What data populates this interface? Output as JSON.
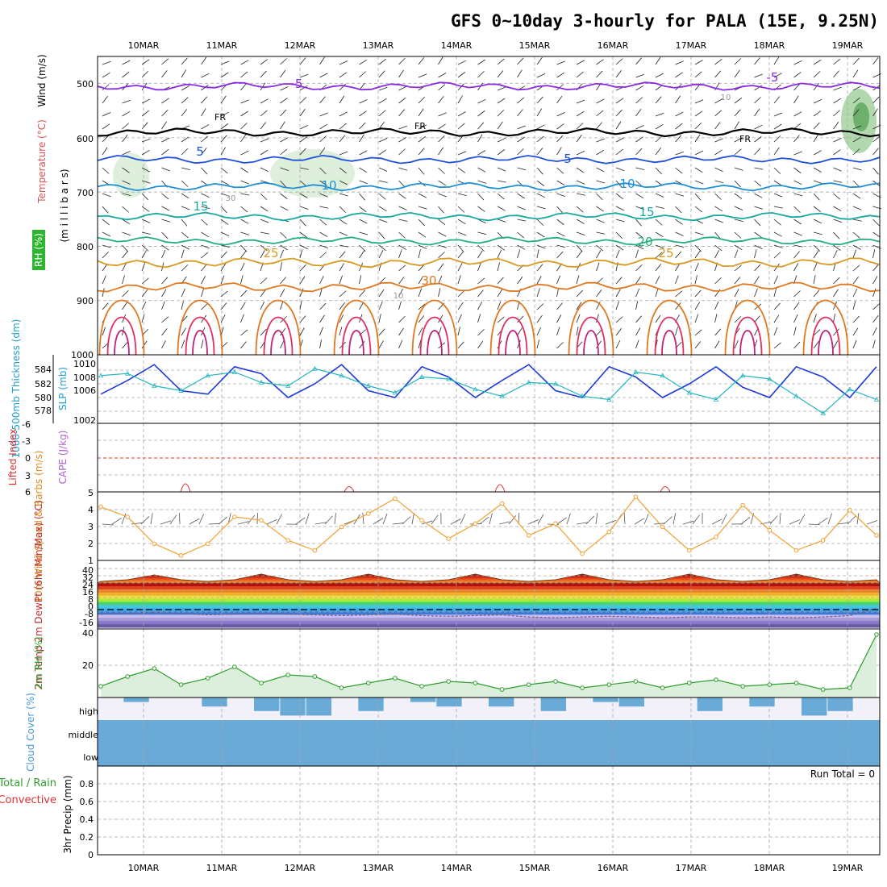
{
  "title": "GFS 0~10day 3-hourly for PALA (15E, 9.25N)",
  "dates": [
    "10MAR",
    "11MAR",
    "12MAR",
    "13MAR",
    "14MAR",
    "15MAR",
    "16MAR",
    "17MAR",
    "18MAR",
    "19MAR"
  ],
  "colors": {
    "grid": "#a8a8a8",
    "temp_contour_cold": "#8a2be2",
    "freezing": "#000000",
    "thickness": "#1f3ad8",
    "slp": "#22b5c0",
    "wind_speed": "#f0a030",
    "rh": "#2e9e2e",
    "cloud": "#6aaad6",
    "cape_zero": "#e03030"
  },
  "chart_data": [
    {
      "panel": "upper_air",
      "type": "heatmap",
      "ylabels": [
        "(m i l l i b a r s)",
        "Wind (m/s)",
        "Temperature (°C)",
        "RH (%)"
      ],
      "yticks": [
        500,
        600,
        700,
        800,
        900,
        1000
      ],
      "ylim": [
        1000,
        450
      ],
      "isotherm_labels": [
        "-5",
        "-5",
        "FR",
        "FR",
        "FR",
        "5",
        "5",
        "10",
        "10",
        "15",
        "15",
        "20",
        "25",
        "25",
        "30",
        "10",
        "30",
        "10"
      ],
      "isotherms_hpa": [
        {
          "temp": -5,
          "pressure": 505
        },
        {
          "temp": 0,
          "pressure": 590
        },
        {
          "temp": 5,
          "pressure": 640
        },
        {
          "temp": 10,
          "pressure": 690
        },
        {
          "temp": 15,
          "pressure": 745
        },
        {
          "temp": 20,
          "pressure": 790
        },
        {
          "temp": 25,
          "pressure": 830
        },
        {
          "temp": 30,
          "pressure": 875
        }
      ]
    },
    {
      "panel": "thickness_slp",
      "type": "line",
      "ylabel_left": "1000-500mb Thickness (dm)",
      "ylabel_right": "SLP (mb)",
      "yticks_left": [
        578,
        580,
        582,
        584
      ],
      "yticks_right": [
        1002,
        1004,
        1006,
        1008,
        1010
      ],
      "series": [
        {
          "name": "1000-500mb Thickness (dm)",
          "values": [
            580.5,
            582.5,
            584.8,
            581.0,
            580.5,
            584.5,
            583.5,
            580.0,
            582.0,
            584.8,
            581.0,
            580.0,
            584.5,
            583.0,
            580.0,
            582.5,
            584.8,
            581.0,
            580.0,
            584.5,
            583.0,
            580.0,
            582.0,
            584.5,
            581.5,
            580.0,
            584.5,
            583.0,
            580.0,
            584.5
          ]
        },
        {
          "name": "SLP (mb)",
          "values": [
            1008.5,
            1008.8,
            1007.0,
            1006.3,
            1008.5,
            1009.0,
            1007.5,
            1007.0,
            1009.5,
            1008.5,
            1007.0,
            1006.0,
            1008.3,
            1008.0,
            1006.5,
            1005.5,
            1007.5,
            1007.3,
            1005.5,
            1005.0,
            1009.0,
            1008.5,
            1006.0,
            1005.0,
            1008.5,
            1008.0,
            1005.5,
            1003.0,
            1006.5,
            1005.0
          ]
        }
      ]
    },
    {
      "panel": "li_cape",
      "type": "line",
      "ylabel_left": "Lifted Index",
      "ylabel_right": "CAPE (J/kg)",
      "yticks": [
        -6,
        -3,
        0,
        3,
        6
      ],
      "ylim": [
        -6,
        6
      ],
      "zero_line": 0
    },
    {
      "panel": "wind_10m",
      "type": "line",
      "ylabel": "10m Wind Speed & Barbs (m/s)",
      "yticks": [
        1,
        2,
        3,
        4,
        5
      ],
      "ylim": [
        1,
        5
      ],
      "series": [
        {
          "name": "10m Wind Speed",
          "values": [
            4.2,
            3.6,
            2.0,
            1.3,
            2.0,
            3.6,
            3.4,
            2.2,
            1.6,
            3.0,
            3.8,
            4.7,
            3.4,
            2.3,
            3.2,
            4.4,
            2.5,
            3.2,
            1.4,
            2.7,
            4.8,
            3.0,
            1.6,
            2.4,
            4.3,
            2.8,
            1.6,
            2.2,
            4.0,
            2.5
          ]
        }
      ]
    },
    {
      "panel": "temp_2m",
      "type": "area",
      "ylabel": "2m Temp 2m DewPt (6hr Min/Max) (°C)",
      "yticks": [
        40,
        32,
        24,
        16,
        8,
        0,
        -8,
        -16
      ],
      "series": [
        {
          "name": "2m Temp",
          "values": [
            29,
            31,
            37,
            31,
            29,
            31,
            38,
            31,
            29,
            31,
            38,
            31,
            29,
            31,
            38,
            31,
            29,
            31,
            38,
            31,
            29,
            31,
            38,
            31,
            29,
            31,
            38,
            31,
            29,
            31
          ]
        },
        {
          "name": "2m DewPt",
          "values": [
            -4,
            -3,
            -2,
            -3,
            -5,
            -4,
            -3,
            -4,
            -5,
            -6,
            -5,
            -4,
            -6,
            -7,
            -6,
            -5,
            -8,
            -9,
            -8,
            -7,
            -8,
            -9,
            -8,
            -8,
            -9,
            -8,
            -9,
            -8,
            -6,
            4
          ]
        }
      ]
    },
    {
      "panel": "rh_2m",
      "type": "area",
      "ylabel": "2m RH (%)",
      "yticks": [
        20,
        40
      ],
      "ylim": [
        0,
        40
      ],
      "series": [
        {
          "name": "2m RH",
          "values": [
            7,
            13,
            18,
            8,
            12,
            19,
            9,
            14,
            13,
            6,
            9,
            12,
            7,
            10,
            9,
            5,
            8,
            10,
            6,
            8,
            10,
            6,
            9,
            11,
            7,
            8,
            9,
            5,
            6,
            39
          ]
        }
      ]
    },
    {
      "panel": "cloud_cover",
      "type": "bar",
      "ylabel": "Cloud Cover (%)",
      "levels": [
        "high",
        "middle",
        "low"
      ],
      "series": [
        {
          "name": "high cloud",
          "values": [
            0,
            20,
            0,
            0,
            40,
            0,
            60,
            80,
            80,
            0,
            60,
            0,
            20,
            40,
            0,
            40,
            0,
            60,
            0,
            20,
            40,
            0,
            0,
            60,
            0,
            40,
            0,
            80,
            60,
            0
          ]
        }
      ]
    },
    {
      "panel": "precip_3hr",
      "type": "bar",
      "ylabel": "3hr Precip (mm)",
      "legend": [
        "Total / Rain",
        "Convective"
      ],
      "yticks": [
        0,
        0.2,
        0.4,
        0.6,
        0.8
      ],
      "ylim": [
        0,
        1.0
      ],
      "annotation": "Run Total = 0",
      "values": []
    }
  ]
}
